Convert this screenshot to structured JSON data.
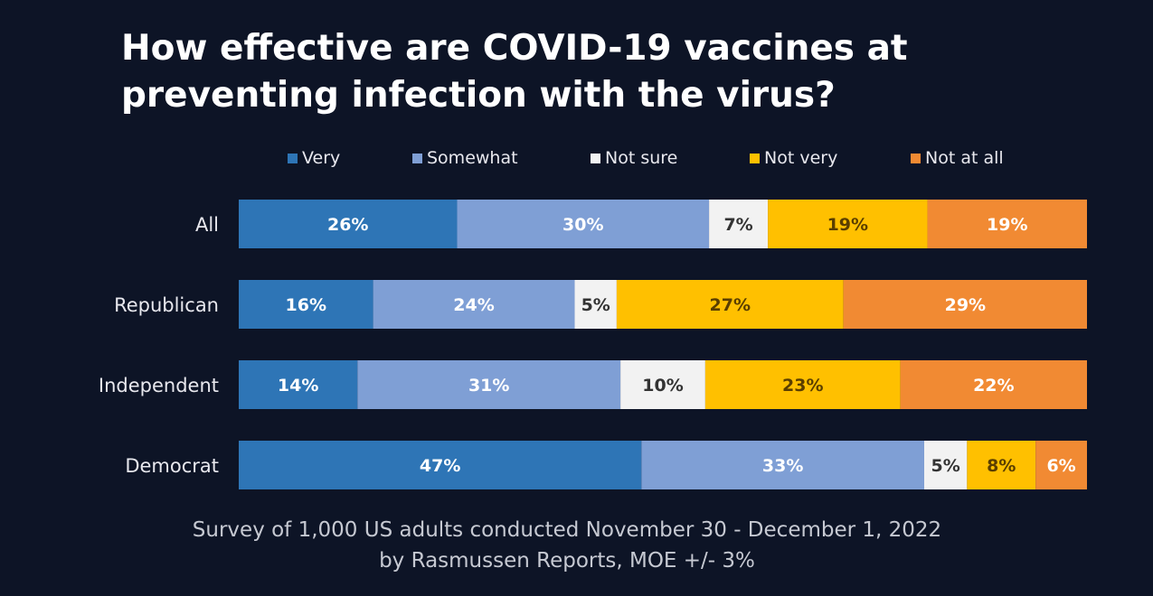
{
  "title": "How effective are COVID-19 vaccines at preventing infection with the virus?",
  "source": {
    "line1": "Survey of 1,000 US adults conducted November 30 - December 1, 2022",
    "line2": "by Rasmussen Reports, MOE +/- 3%"
  },
  "chart_data": {
    "type": "bar",
    "orientation": "horizontal",
    "stacked": "percent",
    "title": "How effective are COVID-19 vaccines at preventing infection with the virus?",
    "xlabel": "",
    "ylabel": "",
    "legend_position": "top",
    "grid": false,
    "categories": [
      "All",
      "Republican",
      "Independent",
      "Democrat"
    ],
    "series": [
      {
        "name": "Very",
        "color": "#2e75b6",
        "values": [
          26,
          16,
          14,
          47
        ]
      },
      {
        "name": "Somewhat",
        "color": "#7f9fd5",
        "values": [
          30,
          24,
          31,
          33
        ]
      },
      {
        "name": "Not sure",
        "color": "#f2f2f2",
        "values": [
          7,
          5,
          10,
          5
        ]
      },
      {
        "name": "Not very",
        "color": "#ffc000",
        "values": [
          19,
          27,
          23,
          8
        ]
      },
      {
        "name": "Not at all",
        "color": "#f18a33",
        "values": [
          19,
          29,
          22,
          6
        ]
      }
    ],
    "data_labels": [
      [
        "26%",
        "30%",
        "7%",
        "19%",
        "19%"
      ],
      [
        "16%",
        "24%",
        "5%",
        "27%",
        "29%"
      ],
      [
        "14%",
        "31%",
        "10%",
        "23%",
        "22%"
      ],
      [
        "47%",
        "33%",
        "5%",
        "8%",
        "6%"
      ]
    ]
  }
}
